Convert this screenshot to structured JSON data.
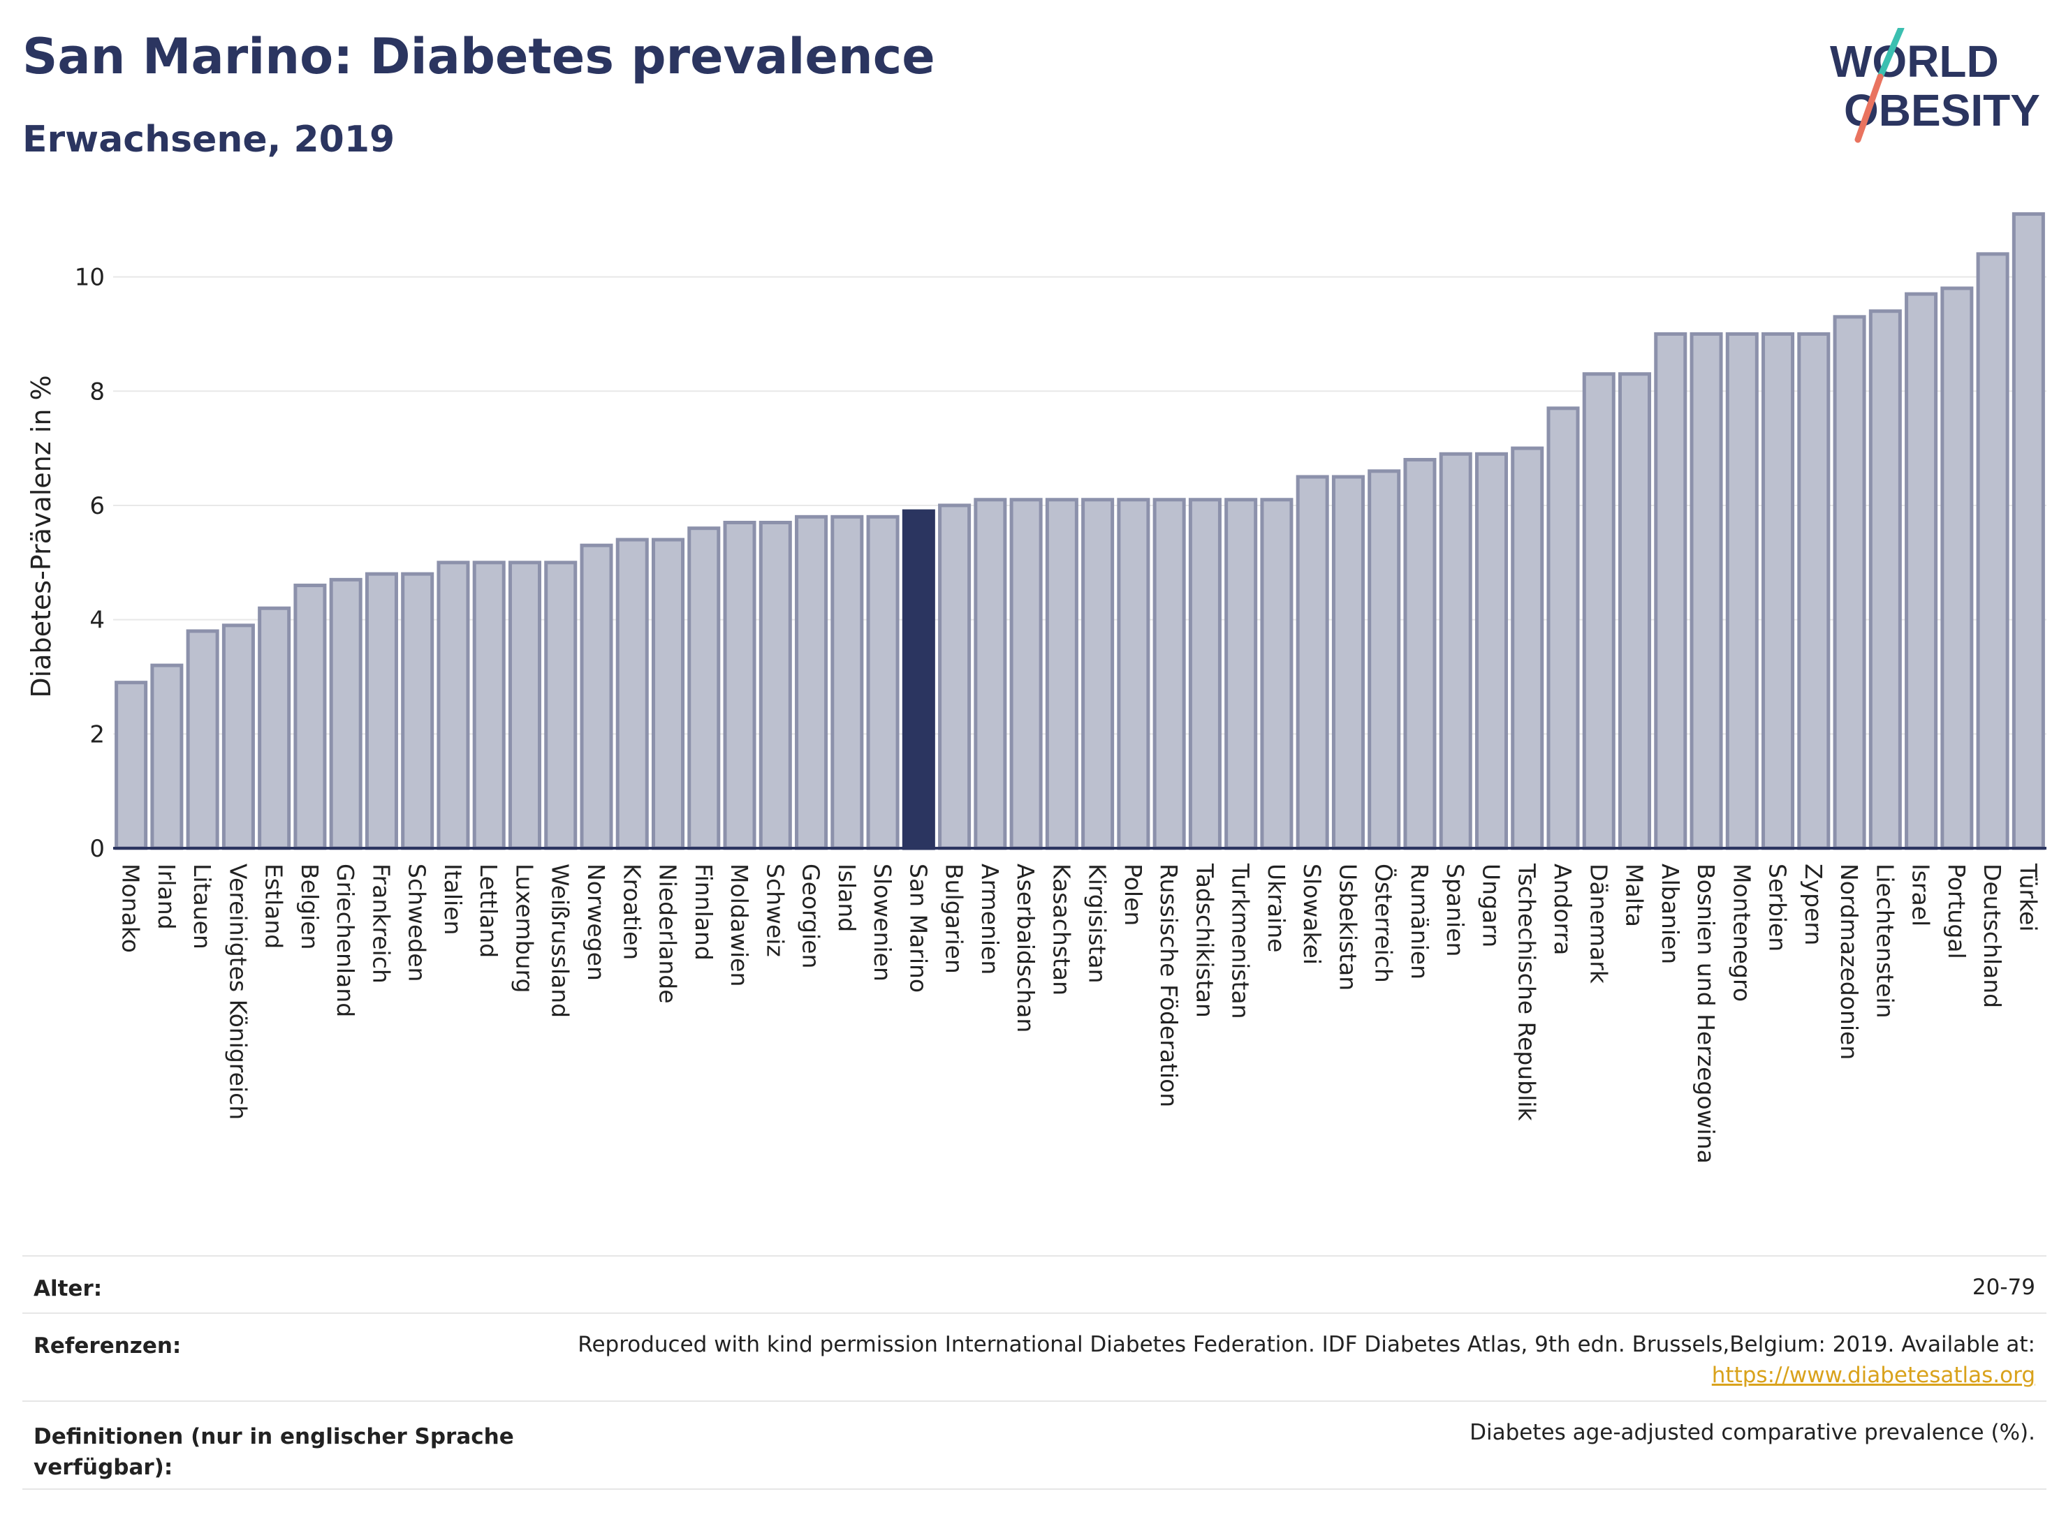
{
  "header": {
    "title": "San Marino: Diabetes prevalence",
    "subtitle": "Erwachsene, 2019",
    "logo_line1": "WORLD",
    "logo_line2": "OBESITY"
  },
  "chart_data": {
    "type": "bar",
    "title": "San Marino: Diabetes prevalence",
    "subtitle": "Erwachsene, 2019",
    "ylabel": "Diabetes-Prävalenz in %",
    "xlabel": "",
    "ylim": [
      0,
      11.4
    ],
    "yticks": [
      0,
      2,
      4,
      6,
      8,
      10
    ],
    "grid": true,
    "highlight": "San Marino",
    "colors": {
      "bar": "#bcc0cf",
      "bar_stroke": "#8c91ab",
      "highlight": "#2b3560",
      "axis": "#2b3560",
      "grid": "#e8e8e8"
    },
    "categories": [
      "Monako",
      "Irland",
      "Litauen",
      "Vereinigtes Königreich",
      "Estland",
      "Belgien",
      "Griechenland",
      "Frankreich",
      "Schweden",
      "Italien",
      "Lettland",
      "Luxemburg",
      "Weißrussland",
      "Norwegen",
      "Kroatien",
      "Niederlande",
      "Finnland",
      "Moldawien",
      "Schweiz",
      "Georgien",
      "Island",
      "Slowenien",
      "San Marino",
      "Bulgarien",
      "Armenien",
      "Aserbaidschan",
      "Kasachstan",
      "Kirgisistan",
      "Polen",
      "Russische Föderation",
      "Tadschikistan",
      "Turkmenistan",
      "Ukraine",
      "Slowakei",
      "Usbekistan",
      "Österreich",
      "Rumänien",
      "Spanien",
      "Ungarn",
      "Tschechische Republik",
      "Andorra",
      "Dänemark",
      "Malta",
      "Albanien",
      "Bosnien und Herzegowina",
      "Montenegro",
      "Serbien",
      "Zypern",
      "Nordmazedonien",
      "Liechtenstein",
      "Israel",
      "Portugal",
      "Deutschland",
      "Türkei"
    ],
    "values": [
      2.9,
      3.2,
      3.8,
      3.9,
      4.2,
      4.6,
      4.7,
      4.8,
      4.8,
      5.0,
      5.0,
      5.0,
      5.0,
      5.3,
      5.4,
      5.4,
      5.6,
      5.7,
      5.7,
      5.8,
      5.8,
      5.8,
      5.9,
      6.0,
      6.1,
      6.1,
      6.1,
      6.1,
      6.1,
      6.1,
      6.1,
      6.1,
      6.1,
      6.5,
      6.5,
      6.6,
      6.8,
      6.9,
      6.9,
      7.0,
      7.7,
      8.3,
      8.3,
      9.0,
      9.0,
      9.0,
      9.0,
      9.0,
      9.3,
      9.4,
      9.7,
      9.8,
      10.4,
      11.1
    ]
  },
  "footer": {
    "rows": [
      {
        "label": "Alter:",
        "value": "20-79"
      },
      {
        "label": "Referenzen:",
        "value": "Reproduced with kind permission International Diabetes Federation. IDF Diabetes Atlas, 9th edn. Brussels,Belgium: 2019. Available at:",
        "link": "https://www.diabetesatlas.org"
      },
      {
        "label": "Definitionen (nur in englischer Sprache verfügbar):",
        "value": "Diabetes age-adjusted comparative prevalence (%)."
      }
    ]
  }
}
